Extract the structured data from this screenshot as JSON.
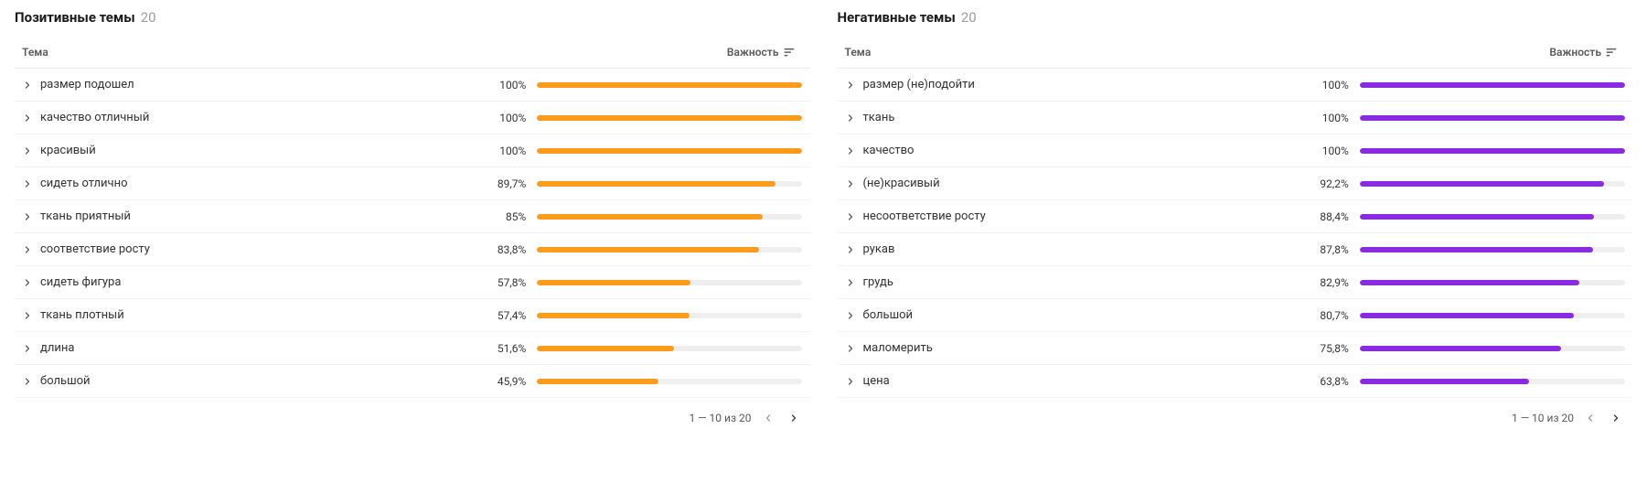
{
  "common": {
    "header_theme": "Тема",
    "header_importance": "Важность",
    "pagination_text": "1 — 10 из 20",
    "bar_track_color": "#eeeeee"
  },
  "panels": [
    {
      "title": "Позитивные темы",
      "count": "20",
      "bar_color": "#ff9b1a",
      "rows": [
        {
          "label": "размер подошел",
          "value_text": "100%",
          "value_pct": 100
        },
        {
          "label": "качество отличный",
          "value_text": "100%",
          "value_pct": 100
        },
        {
          "label": "красивый",
          "value_text": "100%",
          "value_pct": 100
        },
        {
          "label": "сидеть отлично",
          "value_text": "89,7%",
          "value_pct": 89.7
        },
        {
          "label": "ткань приятный",
          "value_text": "85%",
          "value_pct": 85
        },
        {
          "label": "соответствие росту",
          "value_text": "83,8%",
          "value_pct": 83.8
        },
        {
          "label": "сидеть фигура",
          "value_text": "57,8%",
          "value_pct": 57.8
        },
        {
          "label": "ткань плотный",
          "value_text": "57,4%",
          "value_pct": 57.4
        },
        {
          "label": "длина",
          "value_text": "51,6%",
          "value_pct": 51.6
        },
        {
          "label": "большой",
          "value_text": "45,9%",
          "value_pct": 45.9
        }
      ]
    },
    {
      "title": "Негативные темы",
      "count": "20",
      "bar_color": "#8a2be2",
      "rows": [
        {
          "label": "размер (не)подойти",
          "value_text": "100%",
          "value_pct": 100
        },
        {
          "label": "ткань",
          "value_text": "100%",
          "value_pct": 100
        },
        {
          "label": "качество",
          "value_text": "100%",
          "value_pct": 100
        },
        {
          "label": "(не)красивый",
          "value_text": "92,2%",
          "value_pct": 92.2
        },
        {
          "label": "несоответствие росту",
          "value_text": "88,4%",
          "value_pct": 88.4
        },
        {
          "label": "рукав",
          "value_text": "87,8%",
          "value_pct": 87.8
        },
        {
          "label": "грудь",
          "value_text": "82,9%",
          "value_pct": 82.9
        },
        {
          "label": "большой",
          "value_text": "80,7%",
          "value_pct": 80.7
        },
        {
          "label": "маломерить",
          "value_text": "75,8%",
          "value_pct": 75.8
        },
        {
          "label": "цена",
          "value_text": "63,8%",
          "value_pct": 63.8
        }
      ]
    }
  ]
}
